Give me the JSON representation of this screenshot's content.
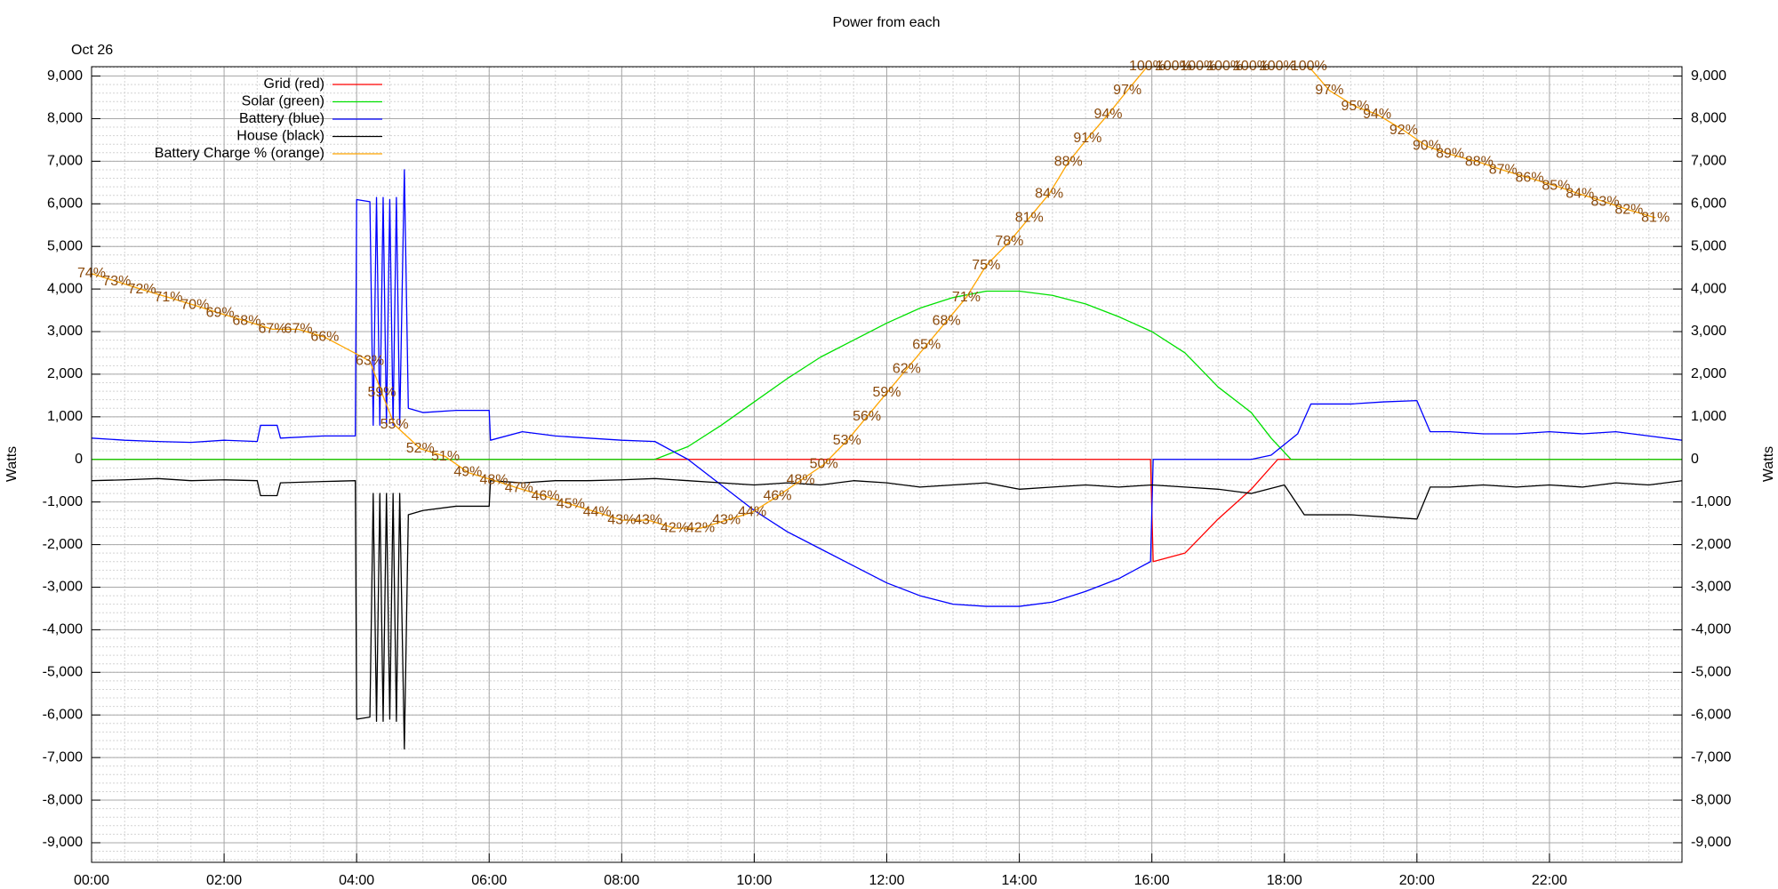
{
  "chart_data": {
    "type": "line",
    "title": "Power from each",
    "date_label": "Oct 26",
    "ylabel": "Watts",
    "y2label": "Watts",
    "xlim": [
      0,
      24
    ],
    "xticks": [
      {
        "value": 0,
        "label": "00:00"
      },
      {
        "value": 2,
        "label": "02:00"
      },
      {
        "value": 4,
        "label": "04:00"
      },
      {
        "value": 6,
        "label": "06:00"
      },
      {
        "value": 8,
        "label": "08:00"
      },
      {
        "value": 10,
        "label": "10:00"
      },
      {
        "value": 12,
        "label": "12:00"
      },
      {
        "value": 14,
        "label": "14:00"
      },
      {
        "value": 16,
        "label": "16:00"
      },
      {
        "value": 18,
        "label": "18:00"
      },
      {
        "value": 20,
        "label": "20:00"
      },
      {
        "value": 22,
        "label": "22:00"
      }
    ],
    "ylim": [
      -9460,
      9220
    ],
    "yticks": [
      {
        "value": -9000,
        "label": "-9,000"
      },
      {
        "value": -8000,
        "label": "-8,000"
      },
      {
        "value": -7000,
        "label": "-7,000"
      },
      {
        "value": -6000,
        "label": "-6,000"
      },
      {
        "value": -5000,
        "label": "-5,000"
      },
      {
        "value": -4000,
        "label": "-4,000"
      },
      {
        "value": -3000,
        "label": "-3,000"
      },
      {
        "value": -2000,
        "label": "-2,000"
      },
      {
        "value": -1000,
        "label": "-1,000"
      },
      0,
      {
        "value": 1000,
        "label": "1,000"
      },
      {
        "value": 2000,
        "label": "2,000"
      },
      {
        "value": 3000,
        "label": "3,000"
      },
      {
        "value": 4000,
        "label": "4,000"
      },
      {
        "value": 5000,
        "label": "5,000"
      },
      {
        "value": 6000,
        "label": "6,000"
      },
      {
        "value": 7000,
        "label": "7,000"
      },
      {
        "value": 8000,
        "label": "8,000"
      },
      {
        "value": 9000,
        "label": "9,000"
      }
    ],
    "y2lim": [
      0,
      100
    ],
    "grid": true,
    "minor_grid": {
      "x": 4,
      "y": 5
    },
    "legend": "upper left",
    "series": [
      {
        "name": "Grid (red)",
        "color": "#ff0000",
        "x": [
          0,
          15.98,
          16.02,
          16.5,
          17,
          17.5,
          17.9,
          24
        ],
        "values": [
          0,
          0,
          -2400,
          -2200,
          -1400,
          -700,
          0,
          0
        ]
      },
      {
        "name": "Solar (green)",
        "color": "#00e000",
        "x": [
          0,
          8.5,
          9,
          9.5,
          10,
          10.5,
          11,
          11.5,
          12,
          12.5,
          13,
          13.5,
          14,
          14.5,
          15,
          15.5,
          16,
          16.5,
          17,
          17.5,
          17.8,
          18.1,
          24
        ],
        "values": [
          0,
          0,
          300,
          800,
          1350,
          1900,
          2400,
          2800,
          3200,
          3550,
          3800,
          3950,
          3950,
          3850,
          3650,
          3350,
          3000,
          2500,
          1700,
          1100,
          500,
          0,
          0
        ]
      },
      {
        "name": "Battery (blue)",
        "color": "#0000ff",
        "x": [
          0,
          0.5,
          1,
          1.5,
          2,
          2.5,
          2.55,
          2.8,
          2.85,
          3.5,
          3.98,
          4.0,
          4.2,
          4.25,
          4.3,
          4.35,
          4.4,
          4.45,
          4.5,
          4.55,
          4.6,
          4.65,
          4.72,
          4.78,
          5,
          5.5,
          6,
          6.02,
          6.5,
          7,
          7.5,
          8,
          8.5,
          9,
          9.5,
          10,
          10.5,
          11,
          11.5,
          12,
          12.5,
          13,
          13.5,
          14,
          14.5,
          15,
          15.5,
          15.98,
          16.02,
          16.5,
          17,
          17.5,
          17.8,
          18,
          18.2,
          18.4,
          19,
          19.5,
          20,
          20.2,
          20.5,
          21,
          21.5,
          22,
          22.5,
          23,
          23.5,
          24
        ],
        "values": [
          500,
          450,
          420,
          400,
          450,
          420,
          800,
          800,
          500,
          550,
          550,
          6100,
          6050,
          800,
          6150,
          800,
          6150,
          800,
          6100,
          800,
          6150,
          800,
          6800,
          1200,
          1100,
          1150,
          1150,
          450,
          650,
          550,
          500,
          450,
          420,
          0,
          -600,
          -1200,
          -1700,
          -2100,
          -2500,
          -2900,
          -3200,
          -3400,
          -3450,
          -3450,
          -3350,
          -3100,
          -2800,
          -2400,
          0,
          0,
          0,
          0,
          100,
          350,
          600,
          1300,
          1300,
          1350,
          1380,
          650,
          650,
          600,
          600,
          650,
          600,
          650,
          550,
          450
        ]
      },
      {
        "name": "House (black)",
        "color": "#000000",
        "x": [
          0,
          0.5,
          1,
          1.5,
          2,
          2.5,
          2.55,
          2.8,
          2.85,
          3.5,
          3.98,
          4.0,
          4.2,
          4.25,
          4.3,
          4.35,
          4.4,
          4.45,
          4.5,
          4.55,
          4.6,
          4.65,
          4.72,
          4.78,
          5,
          5.5,
          6,
          6.02,
          6.5,
          7,
          7.5,
          8,
          8.5,
          9,
          9.5,
          10,
          10.5,
          11,
          11.5,
          12,
          12.5,
          13,
          13.5,
          14,
          14.5,
          15,
          15.5,
          16,
          16.5,
          17,
          17.5,
          18,
          18.3,
          19,
          19.5,
          20,
          20.2,
          20.5,
          21,
          21.5,
          22,
          22.5,
          23,
          23.5,
          24
        ],
        "values": [
          -500,
          -480,
          -450,
          -500,
          -480,
          -500,
          -850,
          -850,
          -550,
          -520,
          -500,
          -6100,
          -6050,
          -800,
          -6150,
          -800,
          -6150,
          -800,
          -6100,
          -800,
          -6150,
          -800,
          -6800,
          -1300,
          -1200,
          -1100,
          -1100,
          -500,
          -550,
          -500,
          -500,
          -480,
          -450,
          -500,
          -550,
          -600,
          -550,
          -600,
          -500,
          -550,
          -650,
          -600,
          -550,
          -700,
          -650,
          -600,
          -650,
          -600,
          -650,
          -700,
          -800,
          -600,
          -1300,
          -1300,
          -1350,
          -1400,
          -650,
          -650,
          -600,
          -650,
          -600,
          -650,
          -550,
          -600,
          -500
        ]
      },
      {
        "name": "Battery Charge % (orange)",
        "color": "#ffa500",
        "label_color": "#8b4a0b",
        "axis": "y2",
        "x": [
          0,
          0.38,
          0.76,
          1.16,
          1.56,
          1.94,
          2.34,
          2.73,
          3.12,
          3.52,
          4.2,
          4.38,
          4.57,
          4.96,
          5.34,
          5.68,
          6.07,
          6.45,
          6.85,
          7.23,
          7.63,
          8.0,
          8.4,
          8.8,
          9.19,
          9.58,
          9.97,
          10.35,
          10.7,
          11.05,
          11.4,
          11.7,
          12.0,
          12.3,
          12.6,
          12.9,
          13.2,
          13.5,
          13.85,
          14.15,
          14.45,
          14.74,
          15.03,
          15.34,
          15.63,
          15.93,
          16.33,
          16.7,
          17.1,
          17.5,
          17.9,
          18.37,
          18.68,
          19.07,
          19.4,
          19.8,
          20.15,
          20.5,
          20.94,
          21.3,
          21.7,
          22.1,
          22.46,
          22.84,
          23.2,
          23.6
        ],
        "values": [
          74,
          73,
          72,
          71,
          70,
          69,
          68,
          67,
          67,
          66,
          63,
          59,
          55,
          52,
          51,
          49,
          48,
          47,
          46,
          45,
          44,
          43,
          43,
          42,
          42,
          43,
          44,
          46,
          48,
          50,
          53,
          56,
          59,
          62,
          65,
          68,
          71,
          75,
          78,
          81,
          84,
          88,
          91,
          94,
          97,
          100,
          100,
          100,
          100,
          100,
          100,
          100,
          97,
          95,
          94,
          92,
          90,
          89,
          88,
          87,
          86,
          85,
          84,
          83,
          82,
          81
        ],
        "value_labels": [
          "74%",
          "73%",
          "72%",
          "71%",
          "70%",
          "69%",
          "68%",
          "67%",
          "67%",
          "66%",
          "63%",
          "59%",
          "55%",
          "52%",
          "51%",
          "49%",
          "48%",
          "47%",
          "46%",
          "45%",
          "44%",
          "43%",
          "43%",
          "42%",
          "42%",
          "43%",
          "44%",
          "46%",
          "48%",
          "50%",
          "53%",
          "56%",
          "59%",
          "62%",
          "65%",
          "68%",
          "71%",
          "75%",
          "78%",
          "81%",
          "84%",
          "88%",
          "91%",
          "94%",
          "97%",
          "100%",
          "100%",
          "100%",
          "100%",
          "100%",
          "100%",
          "100%",
          "97%",
          "95%",
          "94%",
          "92%",
          "90%",
          "89%",
          "88%",
          "87%",
          "86%",
          "85%",
          "84%",
          "83%",
          "82%",
          "81%"
        ]
      }
    ]
  }
}
